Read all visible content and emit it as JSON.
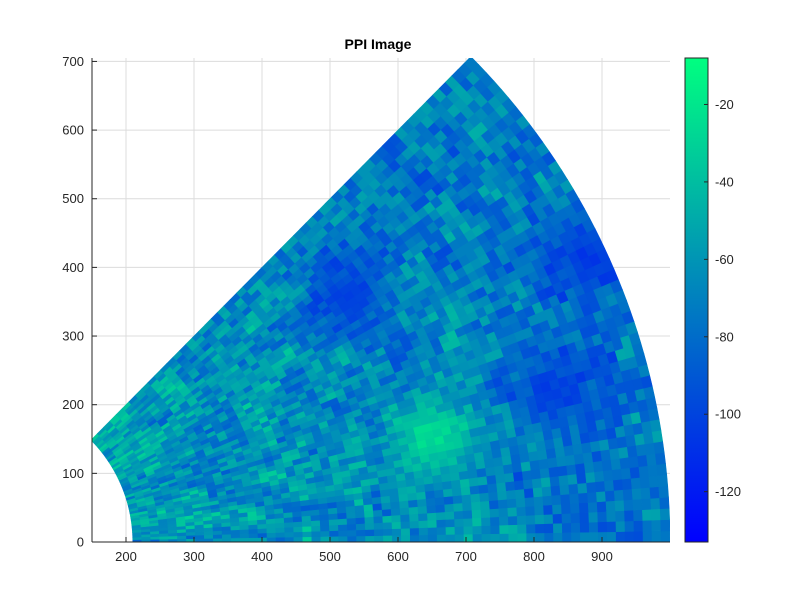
{
  "chart_data": {
    "type": "heatmap",
    "subtype": "ppi-sector",
    "title": "PPI Image",
    "xlabel": "",
    "ylabel": "",
    "xlim": [
      150,
      1000
    ],
    "ylim": [
      0,
      705
    ],
    "xticks": [
      200,
      300,
      400,
      500,
      600,
      700,
      800,
      900
    ],
    "yticks": [
      0,
      100,
      200,
      300,
      400,
      500,
      600,
      700
    ],
    "grid": true,
    "sector": {
      "origin": [
        0,
        0
      ],
      "range_min": 210,
      "range_max": 1000,
      "azimuth_start_deg": 0,
      "azimuth_end_deg": 45
    },
    "colorbar": {
      "range": [
        -133,
        -8
      ],
      "ticks": [
        -20,
        -40,
        -60,
        -80,
        -100,
        -120
      ],
      "colormap": [
        "#0000ff",
        "#00ff80"
      ]
    },
    "features": [
      {
        "type": "hotspot",
        "x": 650,
        "y": 150,
        "value": -15
      },
      {
        "type": "cold-streak",
        "x": 530,
        "y": 360,
        "value": -115
      },
      {
        "type": "cold-streak",
        "x": 830,
        "y": 220,
        "value": -115
      },
      {
        "type": "cold-streak",
        "x": 880,
        "y": 420,
        "value": -110
      }
    ]
  }
}
